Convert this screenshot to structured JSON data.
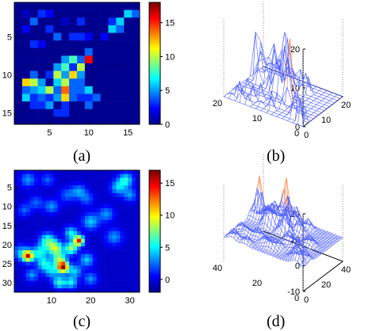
{
  "panel_labels": [
    "(a)",
    "(b)",
    "(c)",
    "(d)"
  ],
  "colormap": [
    "#00008f",
    "#0000ff",
    "#0080ff",
    "#00ffff",
    "#80ff80",
    "#ffff00",
    "#ff8000",
    "#ff0000",
    "#800000"
  ],
  "mesh_color": "#5060ff",
  "peak_color": "#ff8040",
  "chart_data": [
    {
      "panel": "(a)",
      "type": "heatmap",
      "rows": 16,
      "cols": 16,
      "x_ticks": [
        "5",
        "10",
        "15"
      ],
      "x_tick_values": [
        5,
        10,
        15
      ],
      "y_ticks": [
        "5",
        "10",
        "15"
      ],
      "y_tick_values": [
        5,
        10,
        15
      ],
      "colorbar_ticks": [
        "0",
        "5",
        "10",
        "15"
      ],
      "colorbar_tick_values": [
        0,
        5,
        10,
        15
      ],
      "clim": [
        0,
        18
      ],
      "values": [
        [
          0,
          0,
          0,
          0,
          0,
          0,
          0,
          0,
          0,
          0,
          0,
          0,
          0,
          0,
          0,
          0
        ],
        [
          0,
          1,
          0,
          3,
          2,
          0,
          0,
          0,
          0,
          0,
          0,
          0,
          0,
          0,
          6,
          4
        ],
        [
          0,
          0,
          4,
          0,
          0,
          0,
          1,
          0,
          3,
          0,
          0,
          0,
          3,
          6,
          0,
          0
        ],
        [
          0,
          2,
          0,
          0,
          3,
          0,
          0,
          0,
          0,
          0,
          0,
          0,
          6,
          4,
          0,
          0
        ],
        [
          0,
          0,
          0,
          0,
          0,
          4,
          0,
          3,
          3,
          2,
          0,
          2,
          0,
          0,
          0,
          0
        ],
        [
          0,
          0,
          3,
          2,
          0,
          0,
          0,
          0,
          0,
          0,
          0,
          0,
          0,
          0,
          0,
          0
        ],
        [
          0,
          0,
          0,
          0,
          0,
          0,
          0,
          0,
          0,
          4,
          0,
          0,
          0,
          0,
          0,
          0
        ],
        [
          0,
          0,
          0,
          0,
          0,
          0,
          5,
          8,
          4,
          16,
          0,
          0,
          0,
          0,
          0,
          0
        ],
        [
          0,
          0,
          0,
          0,
          0,
          5,
          8,
          3,
          10,
          0,
          0,
          0,
          0,
          0,
          0,
          0
        ],
        [
          0,
          0,
          4,
          0,
          3,
          10,
          5,
          12,
          5,
          0,
          0,
          0,
          0,
          0,
          0,
          0
        ],
        [
          0,
          12,
          10,
          5,
          0,
          6,
          10,
          4,
          4,
          0,
          0,
          0,
          0,
          0,
          0,
          0
        ],
        [
          0,
          4,
          5,
          6,
          10,
          4,
          14,
          4,
          4,
          6,
          0,
          0,
          0,
          0,
          0,
          0
        ],
        [
          0,
          6,
          3,
          4,
          3,
          5,
          12,
          4,
          3,
          3,
          4,
          0,
          0,
          0,
          0,
          0
        ],
        [
          0,
          0,
          3,
          3,
          5,
          0,
          3,
          0,
          0,
          4,
          0,
          0,
          0,
          0,
          0,
          0
        ],
        [
          0,
          0,
          0,
          0,
          0,
          3,
          3,
          0,
          0,
          0,
          0,
          0,
          0,
          0,
          0,
          0
        ],
        [
          0,
          0,
          0,
          0,
          0,
          0,
          0,
          0,
          0,
          0,
          0,
          0,
          0,
          0,
          0,
          0
        ]
      ]
    },
    {
      "panel": "(b)",
      "type": "surface",
      "grid": 16,
      "z_ticks": [
        "0",
        "10",
        "20"
      ],
      "z_tick_values": [
        0,
        10,
        20
      ],
      "x_ticks": [
        "0",
        "10",
        "20"
      ],
      "y_ticks": [
        "20",
        "10",
        "0"
      ],
      "zlim": [
        0,
        20
      ],
      "note": "3-D mesh surface of the panel (a) map"
    },
    {
      "panel": "(c)",
      "type": "heatmap",
      "rows": 32,
      "cols": 32,
      "x_ticks": [
        "10",
        "20",
        "30"
      ],
      "x_tick_values": [
        10,
        20,
        30
      ],
      "y_ticks": [
        "5",
        "10",
        "15",
        "20",
        "25",
        "30"
      ],
      "y_tick_values": [
        5,
        10,
        15,
        20,
        25,
        30
      ],
      "colorbar_ticks": [
        "0",
        "5",
        "10",
        "15"
      ],
      "colorbar_tick_values": [
        0,
        5,
        10,
        15
      ],
      "clim": [
        -2,
        17
      ],
      "blobs": [
        {
          "x": 4,
          "y": 3,
          "a": 4,
          "s": 1.4
        },
        {
          "x": 6,
          "y": 9,
          "a": 3,
          "s": 1.3
        },
        {
          "x": 3,
          "y": 11,
          "a": 3,
          "s": 1.2
        },
        {
          "x": 10,
          "y": 10,
          "a": 4,
          "s": 1.3
        },
        {
          "x": 9,
          "y": 3,
          "a": 3,
          "s": 1.2
        },
        {
          "x": 14,
          "y": 7,
          "a": 3,
          "s": 1.4
        },
        {
          "x": 17,
          "y": 6,
          "a": 4,
          "s": 1.3
        },
        {
          "x": 20,
          "y": 14,
          "a": 5,
          "s": 1.5
        },
        {
          "x": 19,
          "y": 8,
          "a": 3,
          "s": 1.3
        },
        {
          "x": 24,
          "y": 12,
          "a": 4,
          "s": 1.4
        },
        {
          "x": 26,
          "y": 18,
          "a": 4,
          "s": 1.5
        },
        {
          "x": 27,
          "y": 5,
          "a": 5,
          "s": 1.4
        },
        {
          "x": 29,
          "y": 3,
          "a": 6,
          "s": 1.3
        },
        {
          "x": 30,
          "y": 7,
          "a": 4,
          "s": 1.2
        },
        {
          "x": 2,
          "y": 22,
          "a": 4,
          "s": 1.5
        },
        {
          "x": 4,
          "y": 23,
          "a": 15,
          "s": 1.0
        },
        {
          "x": 7,
          "y": 22,
          "a": 6,
          "s": 1.3
        },
        {
          "x": 9,
          "y": 19,
          "a": 7,
          "s": 1.4
        },
        {
          "x": 11,
          "y": 21,
          "a": 9,
          "s": 1.3
        },
        {
          "x": 12,
          "y": 24,
          "a": 8,
          "s": 1.3
        },
        {
          "x": 13,
          "y": 26,
          "a": 16,
          "s": 1.0
        },
        {
          "x": 15,
          "y": 21,
          "a": 9,
          "s": 1.1
        },
        {
          "x": 17,
          "y": 19,
          "a": 15,
          "s": 0.9
        },
        {
          "x": 15,
          "y": 17,
          "a": 6,
          "s": 1.2
        },
        {
          "x": 10,
          "y": 27,
          "a": 5,
          "s": 1.3
        },
        {
          "x": 16,
          "y": 27,
          "a": 5,
          "s": 1.2
        },
        {
          "x": 12,
          "y": 30,
          "a": 7,
          "s": 1.1
        },
        {
          "x": 15,
          "y": 30,
          "a": 6,
          "s": 1.1
        },
        {
          "x": 5,
          "y": 28,
          "a": 4,
          "s": 1.2
        },
        {
          "x": 19,
          "y": 24,
          "a": 5,
          "s": 1.3
        },
        {
          "x": 20,
          "y": 29,
          "a": 4,
          "s": 1.2
        },
        {
          "x": 8,
          "y": 25,
          "a": 6,
          "s": 1.2
        }
      ]
    },
    {
      "panel": "(d)",
      "type": "surface",
      "grid": 32,
      "z_ticks": [
        "-10",
        "0",
        "10",
        "20"
      ],
      "z_tick_values": [
        -10,
        0,
        10,
        20
      ],
      "x_ticks": [
        "0",
        "20",
        "40"
      ],
      "y_ticks": [
        "40",
        "20",
        "0"
      ],
      "zlim": [
        -10,
        20
      ],
      "note": "3-D mesh surface of the panel (c) map"
    }
  ]
}
